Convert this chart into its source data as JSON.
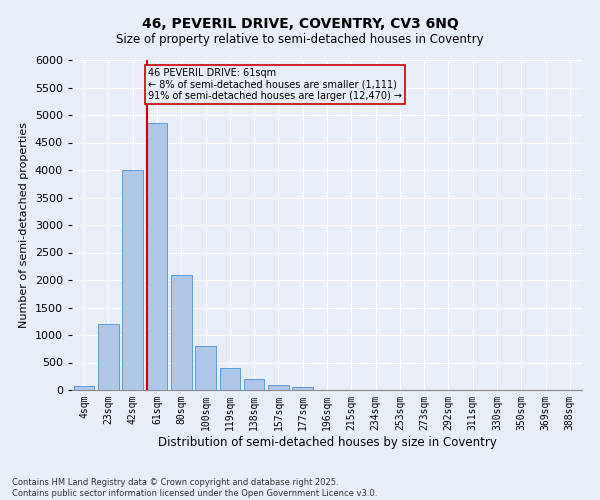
{
  "title_line1": "46, PEVERIL DRIVE, COVENTRY, CV3 6NQ",
  "title_line2": "Size of property relative to semi-detached houses in Coventry",
  "xlabel": "Distribution of semi-detached houses by size in Coventry",
  "ylabel": "Number of semi-detached properties",
  "footnote1": "Contains HM Land Registry data © Crown copyright and database right 2025.",
  "footnote2": "Contains public sector information licensed under the Open Government Licence v3.0.",
  "annotation_title": "46 PEVERIL DRIVE: 61sqm",
  "annotation_line2": "← 8% of semi-detached houses are smaller (1,111)",
  "annotation_line3": "91% of semi-detached houses are larger (12,470) →",
  "categories": [
    "4sqm",
    "23sqm",
    "42sqm",
    "61sqm",
    "80sqm",
    "100sqm",
    "119sqm",
    "138sqm",
    "157sqm",
    "177sqm",
    "196sqm",
    "215sqm",
    "234sqm",
    "253sqm",
    "273sqm",
    "292sqm",
    "311sqm",
    "330sqm",
    "350sqm",
    "369sqm",
    "388sqm"
  ],
  "values": [
    70,
    1200,
    4000,
    4850,
    2100,
    800,
    400,
    200,
    100,
    60,
    0,
    0,
    0,
    0,
    0,
    0,
    0,
    0,
    0,
    0,
    0
  ],
  "bar_color": "#aec6e8",
  "bar_edge_color": "#5b9bd5",
  "redline_color": "#cc0000",
  "background_color": "#e8eef8",
  "ylim": [
    0,
    6000
  ],
  "yticks": [
    0,
    500,
    1000,
    1500,
    2000,
    2500,
    3000,
    3500,
    4000,
    4500,
    5000,
    5500,
    6000
  ]
}
